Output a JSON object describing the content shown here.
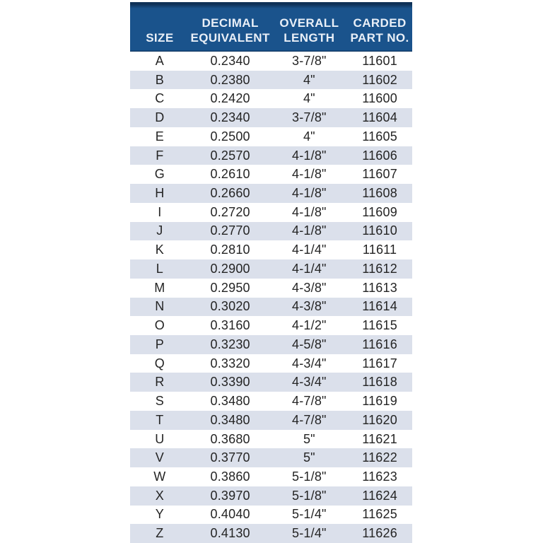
{
  "colors": {
    "page_bg": "#ffffff",
    "header_bg": "#1a538c",
    "header_border": "#0f3157",
    "header_text": "#e9eff7",
    "row_bg": "#ffffff",
    "row_alt_bg": "#dbe0eb",
    "cell_text": "#242424"
  },
  "table": {
    "header_keys": [
      "size",
      "decimal-equivalent",
      "overall-length",
      "carded-part-no"
    ],
    "headers": [
      [
        "SIZE"
      ],
      [
        "DECIMAL",
        "EQUIVALENT"
      ],
      [
        "OVERALL",
        "LENGTH"
      ],
      [
        "CARDED",
        "PART NO."
      ]
    ],
    "rows": [
      {
        "size": "A",
        "decimal": "0.2340",
        "length": "3-7/8\"",
        "part": "11601"
      },
      {
        "size": "B",
        "decimal": "0.2380",
        "length": "4\"",
        "part": "11602"
      },
      {
        "size": "C",
        "decimal": "0.2420",
        "length": "4\"",
        "part": "11600"
      },
      {
        "size": "D",
        "decimal": "0.2340",
        "length": "3-7/8\"",
        "part": "11604"
      },
      {
        "size": "E",
        "decimal": "0.2500",
        "length": "4\"",
        "part": "11605"
      },
      {
        "size": "F",
        "decimal": "0.2570",
        "length": "4-1/8\"",
        "part": "11606"
      },
      {
        "size": "G",
        "decimal": "0.2610",
        "length": "4-1/8\"",
        "part": "11607"
      },
      {
        "size": "H",
        "decimal": "0.2660",
        "length": "4-1/8\"",
        "part": "11608"
      },
      {
        "size": "I",
        "decimal": "0.2720",
        "length": "4-1/8\"",
        "part": "11609"
      },
      {
        "size": "J",
        "decimal": "0.2770",
        "length": "4-1/8\"",
        "part": "11610"
      },
      {
        "size": "K",
        "decimal": "0.2810",
        "length": "4-1/4\"",
        "part": "11611"
      },
      {
        "size": "L",
        "decimal": "0.2900",
        "length": "4-1/4\"",
        "part": "11612"
      },
      {
        "size": "M",
        "decimal": "0.2950",
        "length": "4-3/8\"",
        "part": "11613"
      },
      {
        "size": "N",
        "decimal": "0.3020",
        "length": "4-3/8\"",
        "part": "11614"
      },
      {
        "size": "O",
        "decimal": "0.3160",
        "length": "4-1/2\"",
        "part": "11615"
      },
      {
        "size": "P",
        "decimal": "0.3230",
        "length": "4-5/8\"",
        "part": "11616"
      },
      {
        "size": "Q",
        "decimal": "0.3320",
        "length": "4-3/4\"",
        "part": "11617"
      },
      {
        "size": "R",
        "decimal": "0.3390",
        "length": "4-3/4\"",
        "part": "11618"
      },
      {
        "size": "S",
        "decimal": "0.3480",
        "length": "4-7/8\"",
        "part": "11619"
      },
      {
        "size": "T",
        "decimal": "0.3480",
        "length": "4-7/8\"",
        "part": "11620"
      },
      {
        "size": "U",
        "decimal": "0.3680",
        "length": "5\"",
        "part": "11621"
      },
      {
        "size": "V",
        "decimal": "0.3770",
        "length": "5\"",
        "part": "11622"
      },
      {
        "size": "W",
        "decimal": "0.3860",
        "length": "5-1/8\"",
        "part": "11623"
      },
      {
        "size": "X",
        "decimal": "0.3970",
        "length": "5-1/8\"",
        "part": "11624"
      },
      {
        "size": "Y",
        "decimal": "0.4040",
        "length": "5-1/4\"",
        "part": "11625"
      },
      {
        "size": "Z",
        "decimal": "0.4130",
        "length": "5-1/4\"",
        "part": "11626"
      }
    ]
  }
}
